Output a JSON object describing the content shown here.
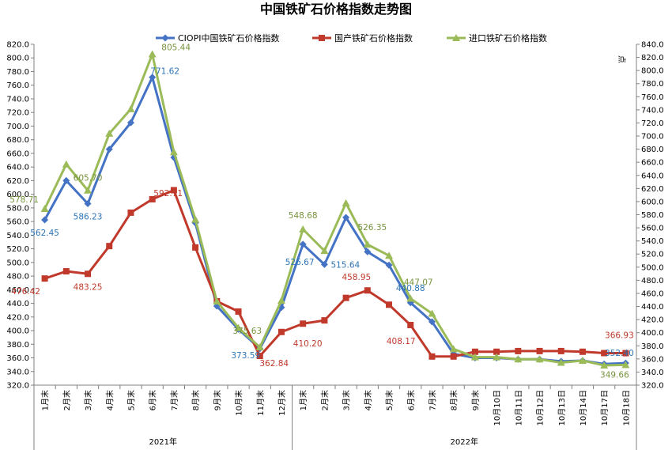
{
  "chart_data": {
    "type": "line",
    "title": "中国铁矿石价格指数走势图",
    "ylabel_right": "点",
    "ylim": [
      320,
      820
    ],
    "ylim_right": [
      320,
      840
    ],
    "ytick_step": 20,
    "grid": false,
    "legend_position": "top",
    "categories": [
      "1月末",
      "2月末",
      "3月末",
      "4月末",
      "5月末",
      "6月末",
      "7月末",
      "8月末",
      "9月末",
      "10月末",
      "11月末",
      "12月末",
      "1月末",
      "2月末",
      "3月末",
      "4月末",
      "5月末",
      "6月末",
      "7月末",
      "8月末",
      "9月末",
      "10月10日",
      "10月11日",
      "10月12日",
      "10月13日",
      "10月14日",
      "10月17日",
      "10月18日"
    ],
    "groups": [
      {
        "label": "2021年",
        "count": 12
      },
      {
        "label": "2022年",
        "count": 16
      }
    ],
    "series": [
      {
        "name": "CIOPI中国铁矿石价格指数",
        "color": "#4472C4",
        "marker": "diamond",
        "values": [
          562.45,
          620.0,
          586.23,
          666.0,
          705.0,
          771.62,
          654.0,
          558.0,
          436.0,
          402.0,
          373.59,
          434.0,
          526.67,
          497.0,
          566.0,
          515.64,
          496.0,
          440.88,
          413.0,
          366.0,
          360.0,
          360.0,
          358.0,
          358.0,
          355.0,
          356.0,
          351.0,
          352.4
        ],
        "labels": [
          {
            "index": 0,
            "text": "562.45"
          },
          {
            "index": 2,
            "text": "586.23"
          },
          {
            "index": 5,
            "text": "771.62"
          },
          {
            "index": 10,
            "text": "373.59"
          },
          {
            "index": 12,
            "text": "526.67"
          },
          {
            "index": 15,
            "text": "515.64"
          },
          {
            "index": 17,
            "text": "440.88"
          },
          {
            "index": 27,
            "text": "352.40"
          }
        ]
      },
      {
        "name": "国产铁矿石价格指数",
        "color": "#C0392B",
        "marker": "square",
        "values": [
          476.42,
          487.0,
          483.25,
          524.0,
          573.0,
          592.71,
          606.0,
          522.0,
          443.0,
          428.0,
          362.84,
          398.0,
          410.2,
          415.0,
          448.0,
          458.95,
          438.0,
          408.17,
          362.0,
          362.0,
          369.0,
          369.0,
          370.0,
          370.0,
          370.0,
          369.0,
          367.0,
          366.93
        ],
        "labels": [
          {
            "index": 0,
            "text": "476.42"
          },
          {
            "index": 2,
            "text": "483.25"
          },
          {
            "index": 5,
            "text": "592.71"
          },
          {
            "index": 10,
            "text": "362.84"
          },
          {
            "index": 12,
            "text": "410.20"
          },
          {
            "index": 15,
            "text": "458.95"
          },
          {
            "index": 17,
            "text": "408.17"
          },
          {
            "index": 27,
            "text": "366.93"
          }
        ]
      },
      {
        "name": "进口铁矿石价格指数",
        "color": "#9BBB59",
        "marker": "triangle",
        "values": [
          578.71,
          644.0,
          605.7,
          689.0,
          725.0,
          805.44,
          662.0,
          563.0,
          443.0,
          404.0,
          375.63,
          444.0,
          548.68,
          517.0,
          587.0,
          526.35,
          510.0,
          447.07,
          425.0,
          373.0,
          361.0,
          361.0,
          358.0,
          358.0,
          353.0,
          356.0,
          349.0,
          349.66
        ],
        "labels": [
          {
            "index": 0,
            "text": "578.71"
          },
          {
            "index": 2,
            "text": "605.70"
          },
          {
            "index": 5,
            "text": "805.44"
          },
          {
            "index": 10,
            "text": "375.63"
          },
          {
            "index": 12,
            "text": "548.68"
          },
          {
            "index": 15,
            "text": "526.35"
          },
          {
            "index": 17,
            "text": "447.07"
          },
          {
            "index": 27,
            "text": "349.66"
          }
        ]
      }
    ]
  }
}
